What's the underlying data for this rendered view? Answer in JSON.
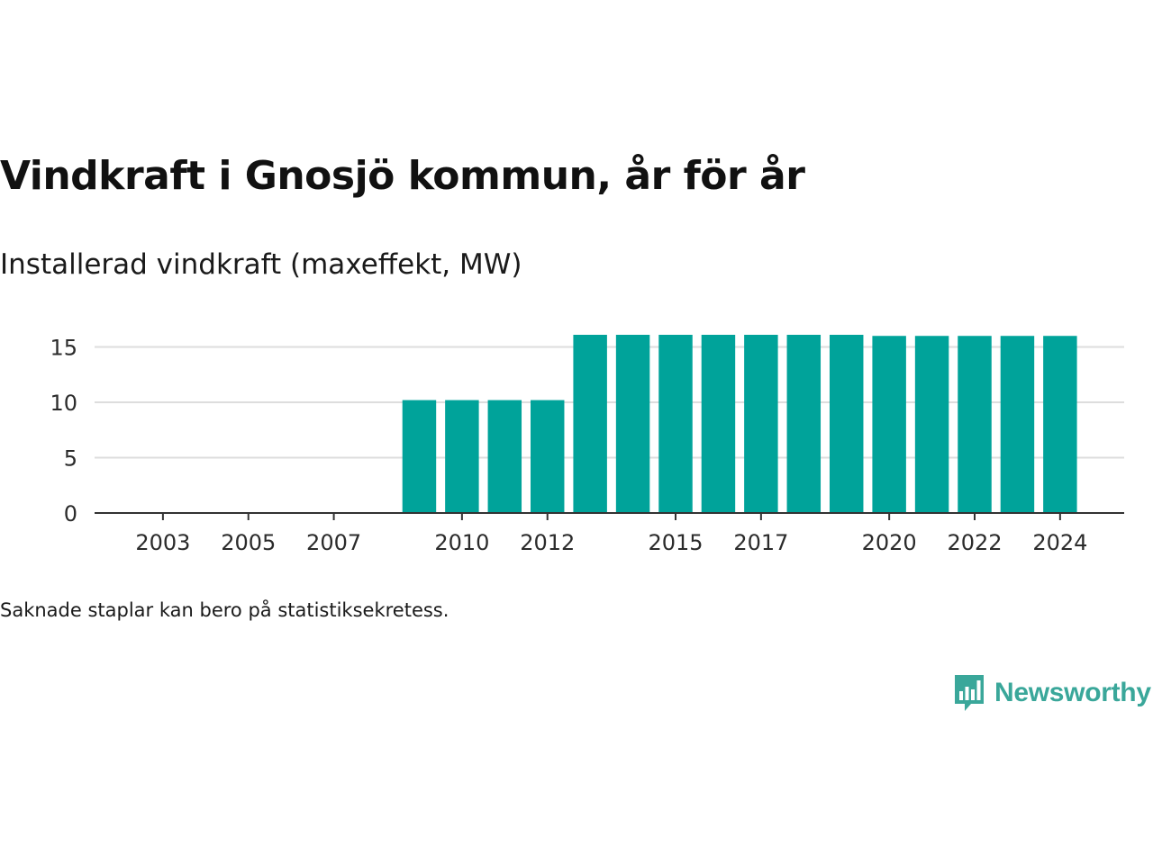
{
  "title": "Vindkraft i Gnosjö kommun, år för år",
  "subtitle": "Installerad vindkraft (maxeffekt, MW)",
  "footnote": "Saknade staplar kan bero på statistiksekretess.",
  "brand": {
    "name": "Newsworthy",
    "logo_icon": "bar-chart-speech-bubble-icon",
    "color": "#3aa79a"
  },
  "colors": {
    "bar": "#00a39a",
    "grid": "#dddddd",
    "axis": "#333333"
  },
  "chart_data": {
    "type": "bar",
    "categories": [
      "2009",
      "2010",
      "2011",
      "2012",
      "2013",
      "2014",
      "2015",
      "2016",
      "2017",
      "2018",
      "2019",
      "2020",
      "2021",
      "2022",
      "2023",
      "2024"
    ],
    "values": [
      10.2,
      10.2,
      10.2,
      10.2,
      16.1,
      16.1,
      16.1,
      16.1,
      16.1,
      16.1,
      16.1,
      16.0,
      16.0,
      16.0,
      16.0,
      16.0
    ],
    "x_ticks": [
      "2003",
      "2005",
      "2007",
      "2010",
      "2012",
      "2015",
      "2017",
      "2020",
      "2022",
      "2024"
    ],
    "y_ticks": [
      0,
      5,
      10,
      15
    ],
    "xlim": [
      2001.4,
      2025.5
    ],
    "ylim": [
      0,
      16.1
    ],
    "grid": true,
    "title": "Vindkraft i Gnosjö kommun, år för år",
    "xlabel": "",
    "ylabel": "Installerad vindkraft (maxeffekt, MW)"
  }
}
